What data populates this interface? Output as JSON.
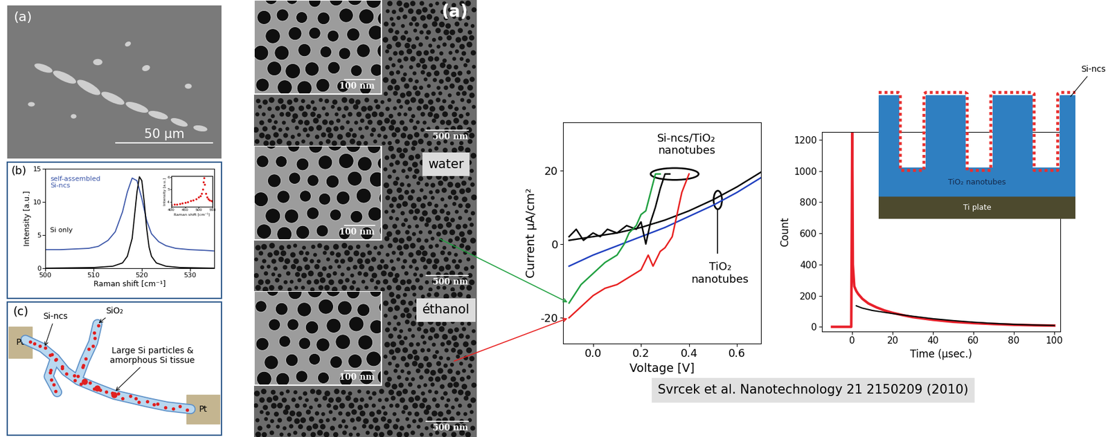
{
  "chart_data": [
    {
      "type": "line",
      "panel_label": "(b)",
      "xlabel": "Raman shift [cm⁻¹]",
      "ylabel": "Intensity [a.u.]",
      "xlim": [
        500,
        535
      ],
      "ylim": [
        0,
        15
      ],
      "xticks": [
        500,
        510,
        520,
        530
      ],
      "yticks": [
        0,
        5,
        10,
        15
      ],
      "series": [
        {
          "name": "self-assembled\nSi-ncs",
          "color": "#3a55a8",
          "x": [
            500,
            503,
            506,
            509,
            511,
            513,
            514.5,
            516,
            517,
            518,
            519,
            520,
            521,
            522,
            523.5,
            525,
            527,
            530,
            533,
            535
          ],
          "values": [
            2.8,
            2.8,
            2.9,
            3.0,
            3.3,
            4.2,
            5.5,
            8.5,
            11.5,
            13.6,
            13.2,
            10.5,
            7.2,
            5.2,
            4.0,
            3.4,
            3.0,
            2.8,
            2.7,
            2.6
          ]
        },
        {
          "name": "Si only",
          "color": "#000000",
          "x": [
            500,
            510,
            514,
            516,
            517,
            518,
            518.5,
            519,
            519.5,
            520,
            520.5,
            521,
            521.5,
            522,
            523,
            525,
            528,
            535
          ],
          "values": [
            0,
            0.1,
            0.3,
            0.8,
            1.8,
            4.5,
            8,
            11.5,
            13.8,
            13.2,
            10,
            6,
            3.2,
            1.8,
            0.8,
            0.3,
            0.1,
            0
          ]
        }
      ]
    },
    {
      "type": "scatter",
      "xlabel": "Raman shift [cm⁻¹]",
      "ylabel": "Intensity [a.u.]",
      "xlim": [
        400,
        550
      ],
      "ylim": [
        3.6,
        6.1
      ],
      "xticks": [
        400,
        450,
        500,
        550
      ],
      "yticks": [
        4,
        5,
        6
      ],
      "series": [
        {
          "color": "#e02020",
          "marker": "circle",
          "x": [
            400,
            410,
            420,
            430,
            440,
            450,
            460,
            470,
            480,
            490,
            500,
            505,
            510,
            515,
            518,
            520,
            522,
            525,
            530,
            535,
            540,
            545,
            550
          ],
          "values": [
            3.75,
            3.78,
            3.82,
            3.86,
            3.9,
            3.95,
            4.0,
            4.08,
            4.15,
            4.25,
            4.4,
            4.5,
            4.7,
            5.0,
            5.6,
            5.95,
            5.4,
            4.7,
            4.4,
            4.25,
            4.15,
            4.1,
            4.05
          ]
        }
      ]
    },
    {
      "type": "line",
      "xlabel": "Voltage [V]",
      "ylabel": "Current µA/cm²",
      "xlim": [
        -0.125,
        0.7
      ],
      "ylim": [
        -27,
        33
      ],
      "xticks": [
        {
          "value": 0.0,
          "label": "0.0"
        },
        0.2,
        0.4,
        0.6
      ],
      "yticks": [
        -20,
        0,
        20
      ],
      "annotations": [
        "Si-ncs/TiO₂\nnanotubes",
        "TiO₂\nnanotubes"
      ],
      "series": [
        {
          "color": "#000000",
          "x": [
            -0.1,
            0,
            0.1,
            0.2,
            0.3,
            0.4,
            0.5,
            0.6,
            0.7
          ],
          "values": [
            1,
            2,
            3,
            4.5,
            6.5,
            9,
            12,
            15.5,
            19.5
          ]
        },
        {
          "color": "#2040c0",
          "x": [
            -0.1,
            0,
            0.1,
            0.2,
            0.3,
            0.4,
            0.5,
            0.6,
            0.7
          ],
          "values": [
            -6,
            -3,
            -0.5,
            2,
            4.5,
            7.5,
            10.5,
            14,
            18
          ]
        },
        {
          "color": "#000000",
          "x": [
            -0.1,
            -0.07,
            -0.04,
            0,
            0.03,
            0.06,
            0.1,
            0.14,
            0.18,
            0.2,
            0.22,
            0.24,
            0.26,
            0.28,
            0.3,
            0.32
          ],
          "values": [
            2,
            4,
            1,
            3,
            2,
            4,
            3,
            5,
            4,
            6,
            0,
            6,
            10,
            15,
            19,
            19
          ]
        },
        {
          "color": "#20a040",
          "x": [
            -0.1,
            -0.05,
            0,
            0.05,
            0.1,
            0.13,
            0.15,
            0.18,
            0.2,
            0.22,
            0.24,
            0.26,
            0.28
          ],
          "values": [
            -16,
            -11,
            -8,
            -5,
            -3,
            0,
            3,
            5,
            8,
            9,
            14,
            19,
            19
          ]
        },
        {
          "color": "#e82020",
          "x": [
            -0.1,
            -0.05,
            0,
            0.05,
            0.1,
            0.15,
            0.2,
            0.23,
            0.25,
            0.28,
            0.3,
            0.33,
            0.35,
            0.37,
            0.4
          ],
          "values": [
            -20,
            -17,
            -14,
            -12,
            -11,
            -9,
            -7,
            -3,
            -6,
            -2,
            -1,
            2,
            8,
            14,
            19
          ]
        }
      ]
    },
    {
      "type": "line",
      "xlabel": "Time (µsec.)",
      "ylabel": "Count",
      "xlim": [
        -15,
        103
      ],
      "ylim": [
        -30,
        1250
      ],
      "xticks": [
        0,
        20,
        40,
        60,
        80,
        100
      ],
      "yticks": [
        0,
        200,
        400,
        600,
        800,
        1000,
        1200
      ],
      "series": [
        {
          "color": "#e8202a",
          "x": [
            -10,
            -5,
            -0.5,
            0,
            0.3,
            1,
            2,
            3,
            5,
            8,
            12,
            16,
            20,
            25,
            30,
            40,
            50,
            60,
            70,
            80,
            90,
            100
          ],
          "values": [
            0,
            0,
            0,
            1250,
            400,
            260,
            230,
            210,
            180,
            150,
            125,
            105,
            90,
            75,
            62,
            45,
            32,
            24,
            18,
            13,
            10,
            8
          ]
        },
        {
          "color": "#000000",
          "x": [
            2,
            5,
            10,
            20,
            30,
            40,
            50,
            60,
            70,
            80,
            90,
            100
          ],
          "values": [
            135,
            120,
            105,
            85,
            68,
            52,
            40,
            30,
            22,
            16,
            12,
            9
          ]
        }
      ]
    }
  ],
  "sem_overview": {
    "panel_label": "(a)",
    "scale_bar": "50 µm"
  },
  "sem_series": {
    "panel_label": "(a)",
    "panels": [
      {
        "inset_scale": "100 nm",
        "scale": "500 nm"
      },
      {
        "tag": "water",
        "inset_scale": "100 nm",
        "scale": "500 nm"
      },
      {
        "tag": "éthanol",
        "inset_scale": "100 nm",
        "scale": "500 nm"
      }
    ]
  },
  "diagram": {
    "panel_label": "(c)",
    "electrodes": [
      "Pt",
      "Pt"
    ],
    "labels": [
      "Si-ncs",
      "SiO₂",
      "Large Si particles &\namorphous Si tissue"
    ]
  },
  "sample_diagram": {
    "nanotubes": "TiO₂ nanotubes",
    "plate": "Ti plate",
    "particles": "Si-ncs"
  },
  "citation": "Svrcek et al. Nanotechnology 21 2150209 (2010)"
}
